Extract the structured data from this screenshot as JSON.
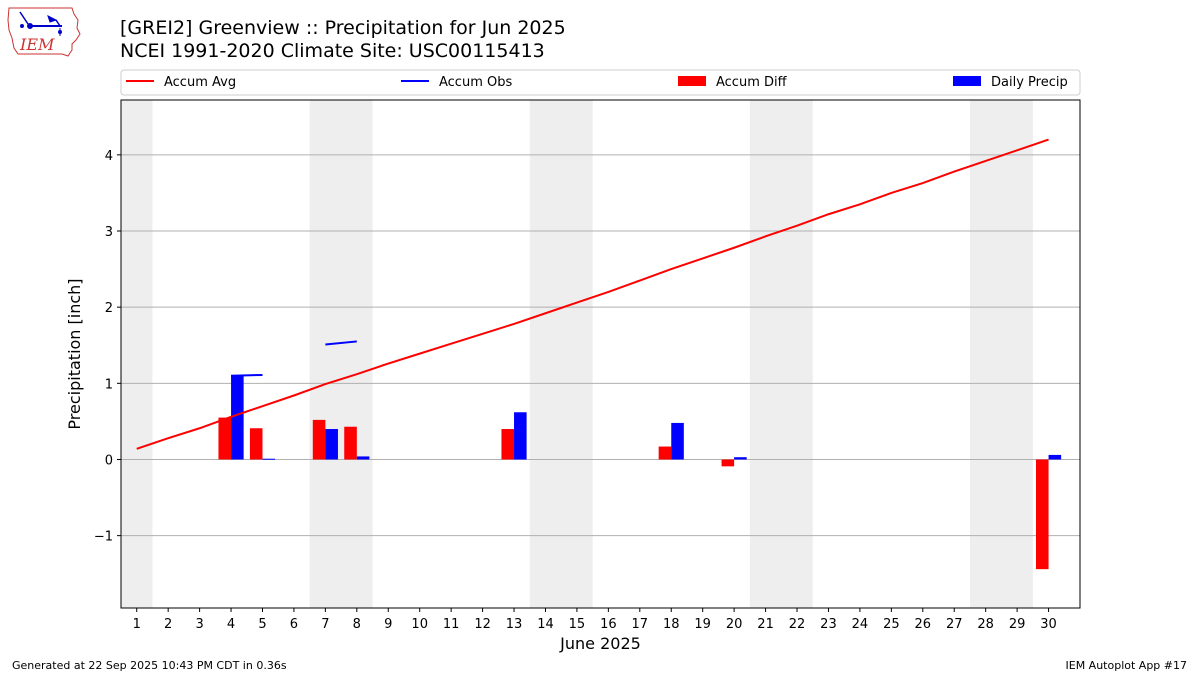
{
  "header": {
    "title_line1": "[GREI2] Greenview :: Precipitation for Jun 2025",
    "title_line2": "NCEI 1991-2020 Climate Site: USC00115413",
    "logo_text": "IEM"
  },
  "footer": {
    "left": "Generated at 22 Sep 2025 10:43 PM CDT in 0.36s",
    "right": "IEM Autoplot App #17"
  },
  "colors": {
    "accum_avg": "#ff0000",
    "accum_obs": "#0000ff",
    "accum_diff": "#ff0000",
    "daily_precip": "#0000ff",
    "weekend_shade": "#eeeeee",
    "grid": "#b0b0b0"
  },
  "chart_data": {
    "type": "bar",
    "title": "[GREI2] Greenview :: Precipitation for Jun 2025",
    "subtitle": "NCEI 1991-2020 Climate Site: USC00115413",
    "xlabel": "June 2025",
    "ylabel": "Precipitation [inch]",
    "xlim": [
      0.5,
      31.0
    ],
    "ylim": [
      -1.95,
      4.72
    ],
    "yticks": [
      -1,
      0,
      1,
      2,
      3,
      4
    ],
    "ytick_labels": [
      "−1",
      "0",
      "1",
      "2",
      "3",
      "4"
    ],
    "x_ticks": [
      1,
      2,
      3,
      4,
      5,
      6,
      7,
      8,
      9,
      10,
      11,
      12,
      13,
      14,
      15,
      16,
      17,
      18,
      19,
      20,
      21,
      22,
      23,
      24,
      25,
      26,
      27,
      28,
      29,
      30
    ],
    "grid": "horizontal",
    "legend": {
      "position": "top",
      "entries": [
        {
          "name": "Accum Avg",
          "kind": "line",
          "color": "#ff0000"
        },
        {
          "name": "Accum Obs",
          "kind": "line",
          "color": "#0000ff"
        },
        {
          "name": "Accum Diff",
          "kind": "bar",
          "color": "#ff0000"
        },
        {
          "name": "Daily Precip",
          "kind": "bar",
          "color": "#0000ff"
        }
      ]
    },
    "weekend_shading": [
      [
        0.5,
        1.5
      ],
      [
        6.5,
        8.5
      ],
      [
        13.5,
        15.5
      ],
      [
        20.5,
        22.5
      ],
      [
        27.5,
        29.5
      ]
    ],
    "series": [
      {
        "name": "Accum Avg",
        "type": "line",
        "color": "#ff0000",
        "x": [
          1,
          2,
          3,
          4,
          5,
          6,
          7,
          8,
          9,
          10,
          11,
          12,
          13,
          14,
          15,
          16,
          17,
          18,
          19,
          20,
          21,
          22,
          23,
          24,
          25,
          26,
          27,
          28,
          29,
          30
        ],
        "values": [
          0.14,
          0.28,
          0.41,
          0.56,
          0.7,
          0.84,
          0.99,
          1.12,
          1.26,
          1.39,
          1.52,
          1.65,
          1.78,
          1.92,
          2.06,
          2.2,
          2.35,
          2.5,
          2.64,
          2.78,
          2.93,
          3.07,
          3.22,
          3.35,
          3.5,
          3.63,
          3.78,
          3.92,
          4.06,
          4.2
        ]
      },
      {
        "name": "Accum Obs",
        "type": "segments",
        "color": "#0000ff",
        "segments": [
          {
            "x": [
              4,
              5
            ],
            "values": [
              1.1,
              1.11
            ]
          },
          {
            "x": [
              7,
              8
            ],
            "values": [
              1.51,
              1.55
            ]
          }
        ]
      },
      {
        "name": "Accum Diff",
        "type": "bar",
        "color": "#ff0000",
        "x": [
          4,
          5,
          7,
          8,
          13,
          18,
          20,
          30
        ],
        "values": [
          0.55,
          0.41,
          0.52,
          0.43,
          0.4,
          0.17,
          -0.09,
          -1.44
        ]
      },
      {
        "name": "Daily Precip",
        "type": "bar",
        "color": "#0000ff",
        "x": [
          4,
          5,
          7,
          8,
          13,
          18,
          20,
          30
        ],
        "values": [
          1.11,
          0.01,
          0.4,
          0.04,
          0.62,
          0.48,
          0.03,
          0.06
        ]
      }
    ]
  }
}
